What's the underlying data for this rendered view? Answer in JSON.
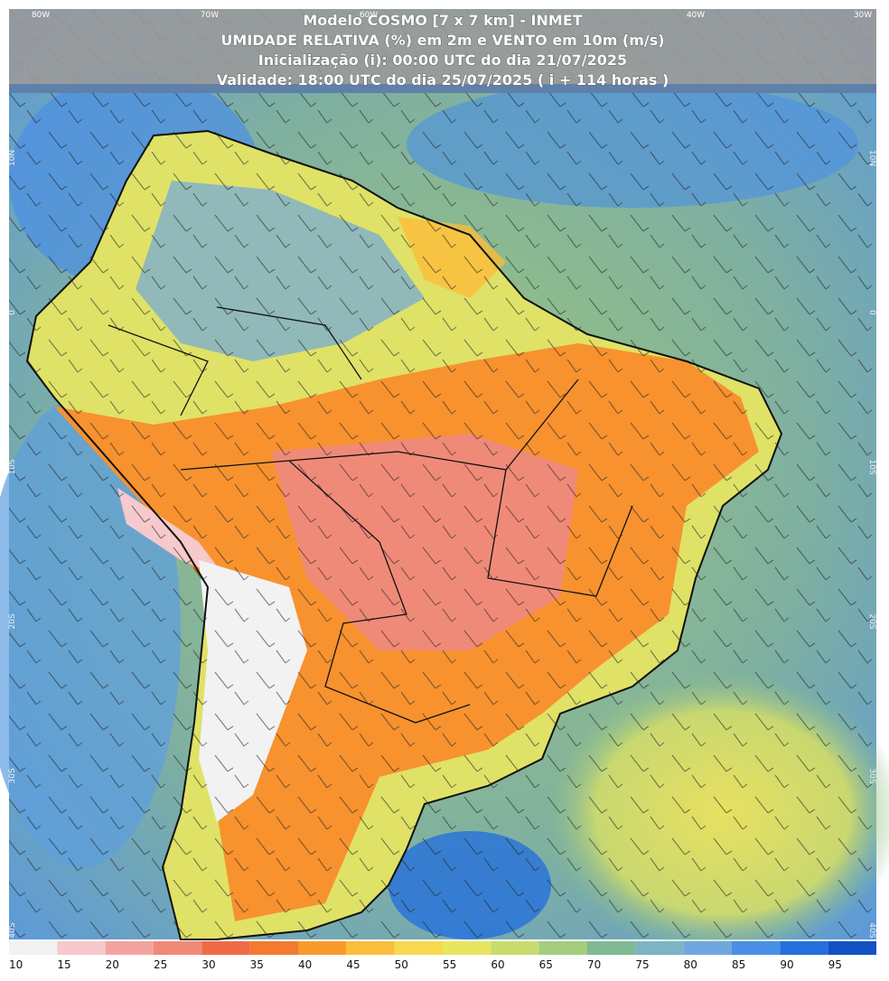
{
  "header": {
    "lines": [
      "Modelo COSMO [7 x 7 km] - INMET",
      "UMIDADE RELATIVA (%) em 2m e VENTO em 10m (m/s)",
      "Inicialização (i): 00:00 UTC do dia 21/07/2025",
      "Validade: 18:00 UTC do dia 25/07/2025 ( i + 114 horas )"
    ]
  },
  "longitude_labels": [
    "80W",
    "70W",
    "60W",
    "40W",
    "30W"
  ],
  "latitude_labels": [
    "10N",
    "0",
    "10S",
    "20S",
    "30S",
    "40S"
  ],
  "colorbar": {
    "values": [
      10,
      15,
      20,
      25,
      30,
      35,
      40,
      45,
      50,
      55,
      60,
      65,
      70,
      75,
      80,
      85,
      90,
      95
    ],
    "colors": [
      "#f2f2f2",
      "#f6c9cc",
      "#f4a3a0",
      "#f08a78",
      "#f06a48",
      "#f37a2e",
      "#f89a2c",
      "#fbbd3a",
      "#f6d94e",
      "#e8e65e",
      "#c9dc6e",
      "#a4cd80",
      "#80b992",
      "#7cb4c4",
      "#6fa8de",
      "#4a8fe6",
      "#2470dc",
      "#1250c4"
    ]
  }
}
